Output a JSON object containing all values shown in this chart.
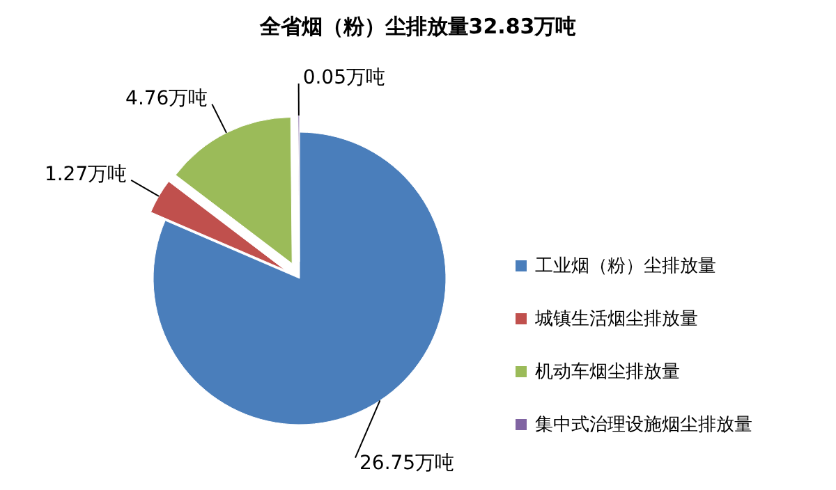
{
  "chart_data": {
    "type": "pie",
    "title": "全省烟（粉）尘排放量32.83万吨",
    "categories": [
      "工业烟（粉）尘排放量",
      "城镇生活烟尘排放量",
      "机动车烟尘排放量",
      "集中式治理设施烟尘排放量"
    ],
    "values": [
      26.75,
      1.27,
      4.76,
      0.05
    ],
    "colors": [
      "#4a7ebb",
      "#c0504d",
      "#9bbb59",
      "#8064a2"
    ],
    "value_labels": [
      "26.75万吨",
      "1.27万吨",
      "4.76万吨",
      "0.05万吨"
    ],
    "legend": "right"
  }
}
